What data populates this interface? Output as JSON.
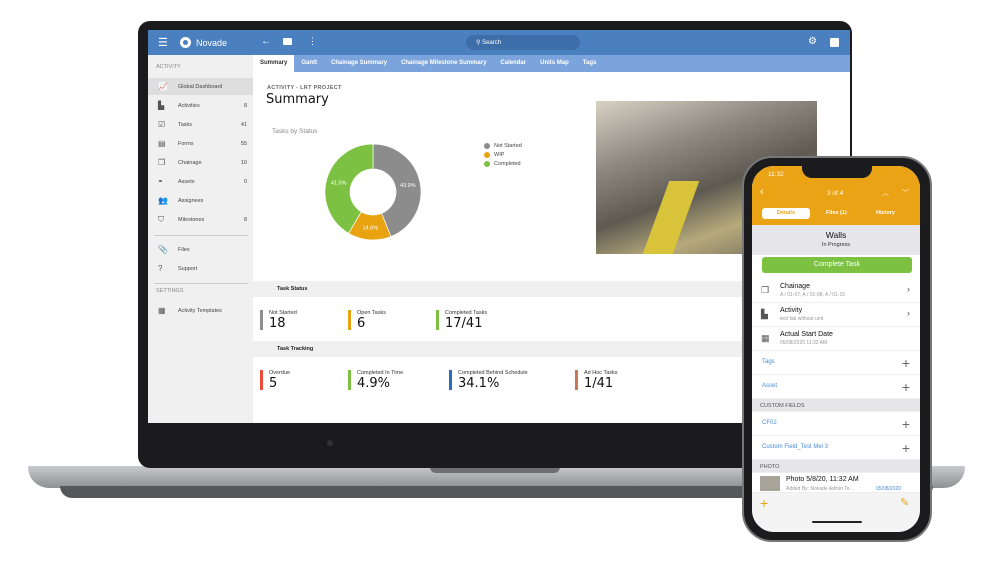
{
  "laptop": {
    "app_name": "Novade",
    "search_placeholder": "Search",
    "tabs": [
      "Summary",
      "Gantt",
      "Chainage Summary",
      "Chainage Milestone Summary",
      "Calendar",
      "Units Map",
      "Tags"
    ],
    "sidebar": {
      "section_activity": "ACTIVITY",
      "section_settings": "SETTINGS",
      "items": [
        {
          "label": "Global Dashboard",
          "count": ""
        },
        {
          "label": "Activities",
          "count": "8"
        },
        {
          "label": "Tasks",
          "count": "41"
        },
        {
          "label": "Forms",
          "count": "55"
        },
        {
          "label": "Chainage",
          "count": "10"
        },
        {
          "label": "Assets",
          "count": "0"
        },
        {
          "label": "Assignees",
          "count": ""
        },
        {
          "label": "Milestones",
          "count": "8"
        },
        {
          "label": "Files",
          "count": ""
        },
        {
          "label": "Support",
          "count": ""
        },
        {
          "label": "Activity Templates",
          "count": ""
        }
      ]
    },
    "breadcrumb": "ACTIVITY - LRT PROJECT",
    "title": "Summary",
    "task_status": {
      "heading": "Task Status",
      "kpis": [
        {
          "label": "Not Started",
          "value": "18",
          "color": "#8c8c8c"
        },
        {
          "label": "Open Tasks",
          "value": "6",
          "color": "#e9a311"
        },
        {
          "label": "Completed Tasks",
          "value": "17/41",
          "color": "#7cc142"
        }
      ]
    },
    "task_tracking": {
      "heading": "Task Tracking",
      "kpis": [
        {
          "label": "Overdue",
          "value": "5",
          "color": "#e94b3c"
        },
        {
          "label": "Completed In Time",
          "value": "4.9%",
          "color": "#7cc142"
        },
        {
          "label": "Completed Behind Schedule",
          "value": "34.1%",
          "color": "#2d6bbf"
        },
        {
          "label": "Ad Hoc Tasks",
          "value": "1/41",
          "color": "#c8785a"
        }
      ]
    }
  },
  "chart_data": {
    "type": "pie",
    "donut": true,
    "title": "Tasks by Status",
    "categories": [
      "Not Started",
      "WIP",
      "Completed"
    ],
    "values": [
      43.9,
      14.6,
      41.5
    ],
    "labels": [
      "43.9%",
      "14.6%",
      "41.5%"
    ],
    "colors": [
      "#8c8c8c",
      "#e9a311",
      "#7cc142"
    ],
    "legend": "right"
  },
  "phone": {
    "time": "11:32",
    "pager": "3 of 4",
    "tabs": [
      "Details",
      "Files (1)",
      "History"
    ],
    "task_name": "Walls",
    "task_status": "In Progress",
    "complete_button": "Complete Task",
    "rows": [
      {
        "title": "Chainage",
        "sub": "A / 01-07, A / 01-08, A / 01-10"
      },
      {
        "title": "Activity",
        "sub": "test fab without unit"
      },
      {
        "title": "Actual Start Date",
        "sub": "05/08/2020 11:32 AM"
      }
    ],
    "tags": "Tags",
    "asset": "Asset",
    "custom_fields": "CUSTOM FIELDS",
    "cf1": "CF02",
    "cf2": "Custom Field_Test Mel 3",
    "photo_section": "PHOTO",
    "photo_title": "Photo 5/8/20, 11:32 AM",
    "photo_added": "Added By: Novade Admin Te...",
    "photo_date": "05/08/2020"
  }
}
